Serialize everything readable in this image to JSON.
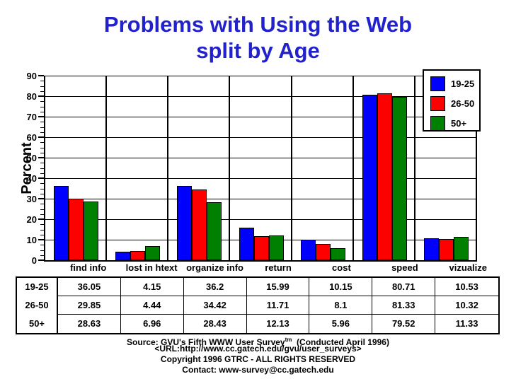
{
  "title": {
    "line1": "Problems with Using the Web",
    "line2": "split by Age",
    "color": "#2222cc"
  },
  "chart_data": {
    "type": "bar",
    "title": "Problems with Using the Web split by Age",
    "xlabel": "",
    "ylabel": "Percent",
    "ylim": [
      0,
      90
    ],
    "ytick_step": 10,
    "minor_tick_step": 2.5,
    "grid": true,
    "legend_position": "top-right",
    "categories": [
      "find info",
      "lost in htext",
      "organize info",
      "return",
      "cost",
      "speed",
      "vizualize"
    ],
    "series": [
      {
        "name": "19-25",
        "color": "#0000ff",
        "values": [
          36.05,
          4.15,
          36.2,
          15.99,
          10.15,
          80.71,
          10.53
        ]
      },
      {
        "name": "26-50",
        "color": "#ff0000",
        "values": [
          29.85,
          4.44,
          34.42,
          11.71,
          8.1,
          81.33,
          10.32
        ]
      },
      {
        "name": "50+",
        "color": "#008000",
        "values": [
          28.63,
          6.96,
          28.43,
          12.13,
          5.96,
          79.52,
          11.33
        ]
      }
    ]
  },
  "table": {
    "row_headers": [
      "19-25",
      "26-50",
      "50+"
    ],
    "column_headers": [
      "find info",
      "lost in htext",
      "organize info",
      "return",
      "cost",
      "speed",
      "vizualize"
    ],
    "rows": [
      [
        "36.05",
        "4.15",
        "36.2",
        "15.99",
        "10.15",
        "80.71",
        "10.53"
      ],
      [
        "29.85",
        "4.44",
        "34.42",
        "11.71",
        "8.1",
        "81.33",
        "10.32"
      ],
      [
        "28.63",
        "6.96",
        "28.43",
        "12.13",
        "5.96",
        "79.52",
        "11.33"
      ]
    ]
  },
  "footer": {
    "source_prefix": "Source: GVU's Fifth WWW User Survey",
    "source_sup": "tm",
    "source_suffix": "  (Conducted April 1996)",
    "url_line": "<URL:http://www.cc.gatech.edu/gvu/user_surveys>",
    "copyright_line": "Copyright 1996 GTRC -  ALL RIGHTS RESERVED",
    "contact_line": "Contact: www-survey@cc.gatech.edu"
  }
}
